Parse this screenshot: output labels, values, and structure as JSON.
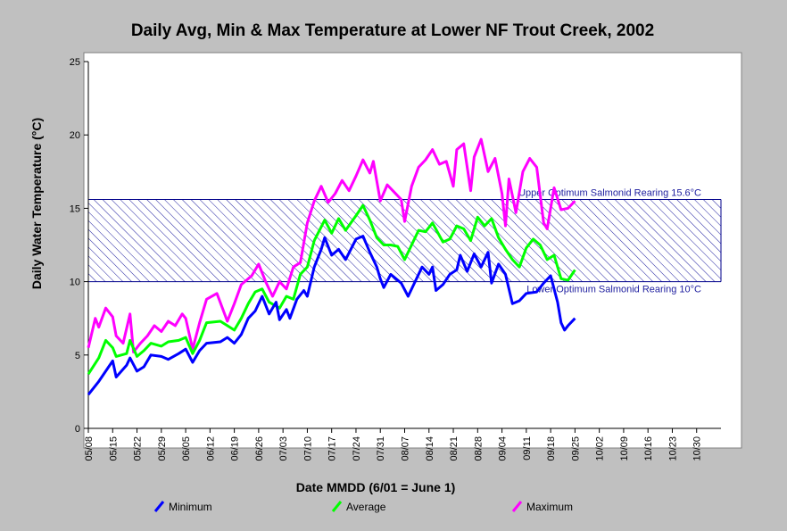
{
  "chart_data": {
    "type": "line",
    "title": "Daily Avg, Min & Max Temperature at Lower NF Trout Creek, 2002",
    "xlabel": "Date MMDD (6/01 = June 1)",
    "ylabel": "Daily Water Temperature (°C)",
    "ylim": [
      0,
      25
    ],
    "yticks": [
      0,
      5,
      10,
      15,
      20,
      25
    ],
    "xticks": [
      "05/08",
      "05/15",
      "05/22",
      "05/29",
      "06/05",
      "06/12",
      "06/19",
      "06/26",
      "07/03",
      "07/10",
      "07/17",
      "07/24",
      "07/31",
      "08/07",
      "08/14",
      "08/21",
      "08/28",
      "09/04",
      "09/11",
      "09/18",
      "09/25",
      "10/02",
      "10/09",
      "10/16",
      "10/23",
      "10/30"
    ],
    "x_start": "05/08",
    "x_end": "11/06",
    "legend_position": "bottom",
    "band": {
      "lower": 10,
      "upper": 15.6,
      "lower_label": "Lower Optimum Salmonid Rearing 10°C",
      "upper_label": "Upper Optimum Salmonid Rearing 15.6°C",
      "color": "#00008b"
    },
    "series": [
      {
        "name": "Minimum",
        "color": "#0000ff",
        "values": [
          {
            "x": "05/08",
            "y": 2.3
          },
          {
            "x": "05/11",
            "y": 3.2
          },
          {
            "x": "05/15",
            "y": 4.6
          },
          {
            "x": "05/16",
            "y": 3.5
          },
          {
            "x": "05/19",
            "y": 4.3
          },
          {
            "x": "05/20",
            "y": 4.8
          },
          {
            "x": "05/22",
            "y": 3.9
          },
          {
            "x": "05/24",
            "y": 4.2
          },
          {
            "x": "05/26",
            "y": 5
          },
          {
            "x": "05/29",
            "y": 4.9
          },
          {
            "x": "05/31",
            "y": 4.7
          },
          {
            "x": "06/03",
            "y": 5.1
          },
          {
            "x": "06/05",
            "y": 5.4
          },
          {
            "x": "06/07",
            "y": 4.5
          },
          {
            "x": "06/09",
            "y": 5.3
          },
          {
            "x": "06/11",
            "y": 5.8
          },
          {
            "x": "06/15",
            "y": 5.9
          },
          {
            "x": "06/17",
            "y": 6.2
          },
          {
            "x": "06/19",
            "y": 5.8
          },
          {
            "x": "06/21",
            "y": 6.4
          },
          {
            "x": "06/23",
            "y": 7.5
          },
          {
            "x": "06/25",
            "y": 8
          },
          {
            "x": "06/27",
            "y": 9
          },
          {
            "x": "06/29",
            "y": 7.8
          },
          {
            "x": "07/01",
            "y": 8.6
          },
          {
            "x": "07/02",
            "y": 7.4
          },
          {
            "x": "07/04",
            "y": 8.1
          },
          {
            "x": "07/05",
            "y": 7.5
          },
          {
            "x": "07/07",
            "y": 8.8
          },
          {
            "x": "07/09",
            "y": 9.4
          },
          {
            "x": "07/10",
            "y": 9
          },
          {
            "x": "07/12",
            "y": 11
          },
          {
            "x": "07/14",
            "y": 12.2
          },
          {
            "x": "07/15",
            "y": 13
          },
          {
            "x": "07/17",
            "y": 11.8
          },
          {
            "x": "07/19",
            "y": 12.2
          },
          {
            "x": "07/21",
            "y": 11.5
          },
          {
            "x": "07/24",
            "y": 12.9
          },
          {
            "x": "07/26",
            "y": 13.1
          },
          {
            "x": "07/28",
            "y": 12
          },
          {
            "x": "07/30",
            "y": 11
          },
          {
            "x": "07/31",
            "y": 10.2
          },
          {
            "x": "08/01",
            "y": 9.6
          },
          {
            "x": "08/03",
            "y": 10.5
          },
          {
            "x": "08/06",
            "y": 9.9
          },
          {
            "x": "08/08",
            "y": 9
          },
          {
            "x": "08/10",
            "y": 10
          },
          {
            "x": "08/12",
            "y": 11
          },
          {
            "x": "08/14",
            "y": 10.5
          },
          {
            "x": "08/15",
            "y": 11
          },
          {
            "x": "08/16",
            "y": 9.4
          },
          {
            "x": "08/18",
            "y": 9.8
          },
          {
            "x": "08/20",
            "y": 10.5
          },
          {
            "x": "08/22",
            "y": 10.8
          },
          {
            "x": "08/23",
            "y": 11.8
          },
          {
            "x": "08/25",
            "y": 10.7
          },
          {
            "x": "08/27",
            "y": 11.9
          },
          {
            "x": "08/29",
            "y": 11
          },
          {
            "x": "08/31",
            "y": 12
          },
          {
            "x": "09/01",
            "y": 9.9
          },
          {
            "x": "09/03",
            "y": 11.2
          },
          {
            "x": "09/05",
            "y": 10.5
          },
          {
            "x": "09/07",
            "y": 8.5
          },
          {
            "x": "09/09",
            "y": 8.7
          },
          {
            "x": "09/11",
            "y": 9.2
          },
          {
            "x": "09/14",
            "y": 9.3
          },
          {
            "x": "09/16",
            "y": 9.9
          },
          {
            "x": "09/18",
            "y": 10.4
          },
          {
            "x": "09/20",
            "y": 8.6
          },
          {
            "x": "09/21",
            "y": 7.2
          },
          {
            "x": "09/22",
            "y": 6.7
          },
          {
            "x": "09/23",
            "y": 7
          },
          {
            "x": "09/25",
            "y": 7.5
          }
        ]
      },
      {
        "name": "Average",
        "color": "#00ff00",
        "values": [
          {
            "x": "05/08",
            "y": 3.7
          },
          {
            "x": "05/11",
            "y": 4.8
          },
          {
            "x": "05/13",
            "y": 6
          },
          {
            "x": "05/15",
            "y": 5.5
          },
          {
            "x": "05/16",
            "y": 4.9
          },
          {
            "x": "05/19",
            "y": 5.1
          },
          {
            "x": "05/20",
            "y": 6
          },
          {
            "x": "05/22",
            "y": 4.9
          },
          {
            "x": "05/24",
            "y": 5.3
          },
          {
            "x": "05/26",
            "y": 5.8
          },
          {
            "x": "05/29",
            "y": 5.6
          },
          {
            "x": "05/31",
            "y": 5.9
          },
          {
            "x": "06/03",
            "y": 6
          },
          {
            "x": "06/05",
            "y": 6.2
          },
          {
            "x": "06/07",
            "y": 5.1
          },
          {
            "x": "06/09",
            "y": 6
          },
          {
            "x": "06/11",
            "y": 7.2
          },
          {
            "x": "06/15",
            "y": 7.3
          },
          {
            "x": "06/17",
            "y": 7
          },
          {
            "x": "06/19",
            "y": 6.7
          },
          {
            "x": "06/21",
            "y": 7.5
          },
          {
            "x": "06/23",
            "y": 8.5
          },
          {
            "x": "06/25",
            "y": 9.3
          },
          {
            "x": "06/27",
            "y": 9.5
          },
          {
            "x": "06/29",
            "y": 8.6
          },
          {
            "x": "07/02",
            "y": 8.2
          },
          {
            "x": "07/04",
            "y": 9
          },
          {
            "x": "07/06",
            "y": 8.8
          },
          {
            "x": "07/08",
            "y": 10.5
          },
          {
            "x": "07/10",
            "y": 11
          },
          {
            "x": "07/12",
            "y": 12.8
          },
          {
            "x": "07/15",
            "y": 14.2
          },
          {
            "x": "07/17",
            "y": 13.3
          },
          {
            "x": "07/19",
            "y": 14.3
          },
          {
            "x": "07/21",
            "y": 13.5
          },
          {
            "x": "07/24",
            "y": 14.5
          },
          {
            "x": "07/26",
            "y": 15.2
          },
          {
            "x": "07/28",
            "y": 14.2
          },
          {
            "x": "07/30",
            "y": 13
          },
          {
            "x": "08/01",
            "y": 12.5
          },
          {
            "x": "08/03",
            "y": 12.5
          },
          {
            "x": "08/05",
            "y": 12.4
          },
          {
            "x": "08/07",
            "y": 11.5
          },
          {
            "x": "08/09",
            "y": 12.5
          },
          {
            "x": "08/11",
            "y": 13.5
          },
          {
            "x": "08/13",
            "y": 13.4
          },
          {
            "x": "08/15",
            "y": 14
          },
          {
            "x": "08/18",
            "y": 12.7
          },
          {
            "x": "08/20",
            "y": 12.9
          },
          {
            "x": "08/22",
            "y": 13.8
          },
          {
            "x": "08/24",
            "y": 13.6
          },
          {
            "x": "08/26",
            "y": 12.8
          },
          {
            "x": "08/28",
            "y": 14.4
          },
          {
            "x": "08/30",
            "y": 13.8
          },
          {
            "x": "09/01",
            "y": 14.3
          },
          {
            "x": "09/03",
            "y": 13
          },
          {
            "x": "09/05",
            "y": 12.2
          },
          {
            "x": "09/07",
            "y": 11.5
          },
          {
            "x": "09/09",
            "y": 11
          },
          {
            "x": "09/11",
            "y": 12.3
          },
          {
            "x": "09/13",
            "y": 12.9
          },
          {
            "x": "09/15",
            "y": 12.5
          },
          {
            "x": "09/17",
            "y": 11.5
          },
          {
            "x": "09/19",
            "y": 11.8
          },
          {
            "x": "09/21",
            "y": 10.2
          },
          {
            "x": "09/23",
            "y": 10.1
          },
          {
            "x": "09/25",
            "y": 10.8
          }
        ]
      },
      {
        "name": "Maximum",
        "color": "#ff00ff",
        "values": [
          {
            "x": "05/08",
            "y": 5.5
          },
          {
            "x": "05/10",
            "y": 7.5
          },
          {
            "x": "05/11",
            "y": 6.9
          },
          {
            "x": "05/13",
            "y": 8.2
          },
          {
            "x": "05/15",
            "y": 7.6
          },
          {
            "x": "05/16",
            "y": 6.3
          },
          {
            "x": "05/18",
            "y": 5.8
          },
          {
            "x": "05/20",
            "y": 7.8
          },
          {
            "x": "05/21",
            "y": 5.2
          },
          {
            "x": "05/23",
            "y": 5.8
          },
          {
            "x": "05/25",
            "y": 6.3
          },
          {
            "x": "05/27",
            "y": 7
          },
          {
            "x": "05/29",
            "y": 6.6
          },
          {
            "x": "05/31",
            "y": 7.3
          },
          {
            "x": "06/02",
            "y": 7
          },
          {
            "x": "06/04",
            "y": 7.8
          },
          {
            "x": "06/05",
            "y": 7.5
          },
          {
            "x": "06/07",
            "y": 5.4
          },
          {
            "x": "06/09",
            "y": 7.2
          },
          {
            "x": "06/11",
            "y": 8.8
          },
          {
            "x": "06/14",
            "y": 9.2
          },
          {
            "x": "06/17",
            "y": 7.3
          },
          {
            "x": "06/19",
            "y": 8.5
          },
          {
            "x": "06/21",
            "y": 9.8
          },
          {
            "x": "06/24",
            "y": 10.4
          },
          {
            "x": "06/26",
            "y": 11.2
          },
          {
            "x": "06/28",
            "y": 10
          },
          {
            "x": "06/30",
            "y": 9
          },
          {
            "x": "07/02",
            "y": 10
          },
          {
            "x": "07/04",
            "y": 9.5
          },
          {
            "x": "07/06",
            "y": 11
          },
          {
            "x": "07/08",
            "y": 11.3
          },
          {
            "x": "07/10",
            "y": 14
          },
          {
            "x": "07/12",
            "y": 15.5
          },
          {
            "x": "07/14",
            "y": 16.5
          },
          {
            "x": "07/16",
            "y": 15.4
          },
          {
            "x": "07/18",
            "y": 16
          },
          {
            "x": "07/20",
            "y": 16.9
          },
          {
            "x": "07/22",
            "y": 16.2
          },
          {
            "x": "07/24",
            "y": 17.2
          },
          {
            "x": "07/26",
            "y": 18.3
          },
          {
            "x": "07/28",
            "y": 17.4
          },
          {
            "x": "07/29",
            "y": 18.2
          },
          {
            "x": "07/31",
            "y": 15.5
          },
          {
            "x": "08/02",
            "y": 16.6
          },
          {
            "x": "08/04",
            "y": 16.1
          },
          {
            "x": "08/06",
            "y": 15.6
          },
          {
            "x": "08/07",
            "y": 14.1
          },
          {
            "x": "08/09",
            "y": 16.5
          },
          {
            "x": "08/11",
            "y": 17.8
          },
          {
            "x": "08/13",
            "y": 18.3
          },
          {
            "x": "08/15",
            "y": 19
          },
          {
            "x": "08/17",
            "y": 18
          },
          {
            "x": "08/19",
            "y": 18.2
          },
          {
            "x": "08/21",
            "y": 16.5
          },
          {
            "x": "08/22",
            "y": 19
          },
          {
            "x": "08/24",
            "y": 19.4
          },
          {
            "x": "08/26",
            "y": 16.2
          },
          {
            "x": "08/27",
            "y": 18.5
          },
          {
            "x": "08/29",
            "y": 19.7
          },
          {
            "x": "08/31",
            "y": 17.5
          },
          {
            "x": "09/02",
            "y": 18.4
          },
          {
            "x": "09/04",
            "y": 16
          },
          {
            "x": "09/05",
            "y": 13.8
          },
          {
            "x": "09/06",
            "y": 17
          },
          {
            "x": "09/08",
            "y": 14.7
          },
          {
            "x": "09/10",
            "y": 17.5
          },
          {
            "x": "09/12",
            "y": 18.4
          },
          {
            "x": "09/14",
            "y": 17.8
          },
          {
            "x": "09/16",
            "y": 14
          },
          {
            "x": "09/17",
            "y": 13.6
          },
          {
            "x": "09/19",
            "y": 16.4
          },
          {
            "x": "09/21",
            "y": 14.9
          },
          {
            "x": "09/23",
            "y": 15
          },
          {
            "x": "09/25",
            "y": 15.5
          }
        ]
      }
    ]
  }
}
